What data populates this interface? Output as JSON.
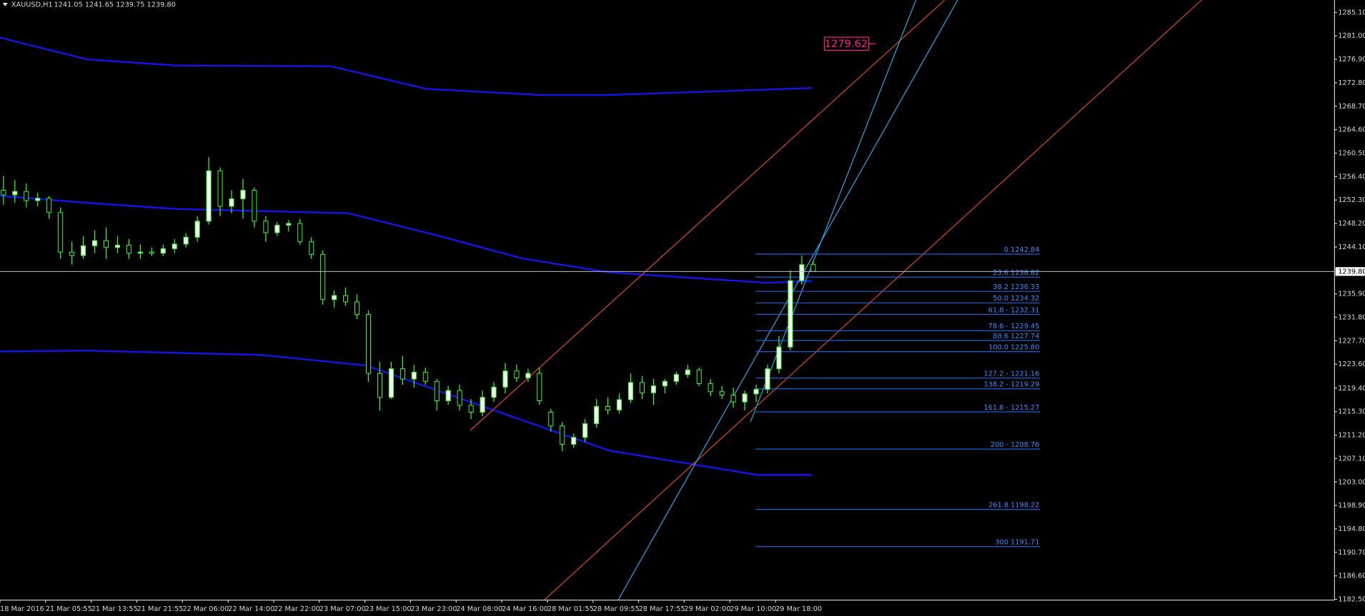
{
  "header": {
    "symbol": "XAUUSD,H1",
    "quote": "1241.05 1241.65 1239.75 1239.80"
  },
  "chart_data": {
    "type": "candlestick",
    "categories": [
      "18 Mar 2016",
      null,
      null,
      null,
      "21 Mar 05:55",
      null,
      null,
      null,
      "21 Mar 13:55",
      null,
      null,
      null,
      "21 Mar 21:55",
      null,
      null,
      null,
      "22 Mar 06:00",
      null,
      null,
      null,
      "22 Mar 14:00",
      null,
      null,
      null,
      "22 Mar 22:00",
      null,
      null,
      null,
      "23 Mar 07:00",
      null,
      null,
      null,
      "23 Mar 15:00",
      null,
      null,
      null,
      "23 Mar 23:00",
      null,
      null,
      null,
      "24 Mar 08:00",
      null,
      null,
      null,
      "24 Mar 16:00",
      null,
      null,
      null,
      "28 Mar 01:55",
      null,
      null,
      null,
      "28 Mar 09:55",
      null,
      null,
      null,
      "28 Mar 17:55",
      null,
      null,
      null,
      "29 Mar 02:00",
      null,
      null,
      null,
      "29 Mar 10:00",
      null,
      null,
      null,
      "29 Mar 18:00",
      null,
      null,
      null
    ],
    "open": [
      1254.0,
      1253.2,
      1253.8,
      1252.2,
      1252.6,
      1250.1,
      1243.2,
      1242.6,
      1244.3,
      1245.2,
      1244.0,
      1244.4,
      1243.0,
      1243.2,
      1243.0,
      1243.8,
      1244.6,
      1245.8,
      1248.6,
      1257.4,
      1251.2,
      1252.5,
      1254.0,
      1248.6,
      1246.6,
      1247.9,
      1248.2,
      1245.0,
      1242.8,
      1234.9,
      1235.6,
      1234.5,
      1232.3,
      1222.0,
      1217.8,
      1222.8,
      1221.0,
      1222.2,
      1220.6,
      1217.2,
      1219.0,
      1216.4,
      1215.2,
      1217.8,
      1219.6,
      1222.4,
      1221.2,
      1222.0,
      1215.2,
      1212.8,
      1209.6,
      1210.8,
      1213.2,
      1216.2,
      1215.6,
      1217.4,
      1220.4,
      1218.6,
      1219.8,
      1220.6,
      1221.8,
      1222.6,
      1220.2,
      1218.8,
      1218.2,
      1217.0,
      1218.4,
      1219.2,
      1222.8,
      1226.6,
      1238.2,
      1241.05
    ],
    "high": [
      1256.5,
      1255.8,
      1255.2,
      1253.6,
      1253.0,
      1251.0,
      1245.0,
      1246.0,
      1247.0,
      1247.5,
      1246.0,
      1245.5,
      1244.5,
      1244.0,
      1244.5,
      1245.5,
      1246.5,
      1249.5,
      1259.8,
      1258.0,
      1254.0,
      1256.0,
      1254.5,
      1249.5,
      1248.5,
      1248.8,
      1249.0,
      1245.8,
      1243.5,
      1236.5,
      1237.0,
      1235.8,
      1233.0,
      1224.0,
      1224.0,
      1225.0,
      1223.5,
      1223.0,
      1221.0,
      1219.8,
      1220.0,
      1217.5,
      1219.0,
      1220.5,
      1223.8,
      1223.5,
      1222.8,
      1223.0,
      1215.8,
      1213.5,
      1211.5,
      1214.0,
      1217.5,
      1217.8,
      1218.5,
      1222.0,
      1221.5,
      1221.0,
      1221.0,
      1222.3,
      1223.5,
      1223.0,
      1221.0,
      1219.8,
      1219.5,
      1219.0,
      1220.0,
      1223.5,
      1228.5,
      1240.0,
      1242.6,
      1241.65
    ],
    "low": [
      1251.5,
      1251.8,
      1251.0,
      1251.2,
      1249.0,
      1242.0,
      1241.0,
      1242.0,
      1243.0,
      1242.0,
      1243.0,
      1242.0,
      1242.0,
      1242.5,
      1242.5,
      1243.0,
      1244.0,
      1245.0,
      1248.0,
      1249.5,
      1250.0,
      1249.0,
      1247.5,
      1245.0,
      1246.0,
      1246.8,
      1244.5,
      1242.0,
      1234.0,
      1233.5,
      1233.8,
      1231.5,
      1220.5,
      1215.5,
      1217.5,
      1220.0,
      1219.5,
      1220.0,
      1215.5,
      1216.5,
      1215.5,
      1214.0,
      1214.5,
      1217.0,
      1218.5,
      1220.5,
      1220.5,
      1216.5,
      1211.8,
      1208.4,
      1209.0,
      1210.0,
      1212.5,
      1214.8,
      1215.0,
      1216.8,
      1217.5,
      1216.5,
      1218.5,
      1220.0,
      1221.2,
      1219.8,
      1218.0,
      1217.5,
      1216.0,
      1215.5,
      1217.0,
      1218.5,
      1222.0,
      1226.0,
      1237.5,
      1239.75
    ],
    "close": [
      1253.2,
      1253.8,
      1252.2,
      1252.6,
      1250.1,
      1243.2,
      1242.6,
      1244.3,
      1245.2,
      1244.0,
      1244.4,
      1243.0,
      1243.2,
      1243.0,
      1243.8,
      1244.6,
      1245.8,
      1248.6,
      1257.4,
      1251.2,
      1252.5,
      1254.0,
      1248.6,
      1246.6,
      1247.9,
      1248.2,
      1245.0,
      1242.8,
      1234.9,
      1235.6,
      1234.5,
      1232.3,
      1222.0,
      1217.8,
      1222.8,
      1221.0,
      1222.2,
      1220.6,
      1217.2,
      1219.0,
      1216.4,
      1215.2,
      1217.8,
      1219.6,
      1222.4,
      1221.2,
      1222.0,
      1217.2,
      1212.8,
      1209.6,
      1210.8,
      1213.2,
      1216.2,
      1215.6,
      1217.4,
      1220.4,
      1218.6,
      1219.8,
      1220.6,
      1221.8,
      1222.6,
      1220.2,
      1218.8,
      1218.2,
      1217.0,
      1218.4,
      1219.2,
      1222.8,
      1226.6,
      1238.2,
      1241.0,
      1239.8
    ],
    "up_color": "#f2fff0",
    "down_color": "#000000",
    "wick_color": "#33ff22",
    "ylim": [
      1182.35,
      1287.23
    ],
    "yticks": [
      {
        "value": 1285.1,
        "label": "1285.10"
      },
      {
        "value": 1281,
        "label": "1281.00"
      },
      {
        "value": 1276.9,
        "label": "1276.90"
      },
      {
        "value": 1272.8,
        "label": "1272.80"
      },
      {
        "value": 1268.7,
        "label": "1268.70"
      },
      {
        "value": 1264.6,
        "label": "1264.60"
      },
      {
        "value": 1260.5,
        "label": "1260.50"
      },
      {
        "value": 1256.4,
        "label": "1256.40"
      },
      {
        "value": 1252.3,
        "label": "1252.30"
      },
      {
        "value": 1248.2,
        "label": "1248.20"
      },
      {
        "value": 1244.1,
        "label": "1244.10"
      },
      {
        "value": 1235.9,
        "label": "1235.90"
      },
      {
        "value": 1231.8,
        "label": "1231.80"
      },
      {
        "value": 1227.7,
        "label": "1227.70"
      },
      {
        "value": 1223.6,
        "label": "1223.60"
      },
      {
        "value": 1219.4,
        "label": "1219.40"
      },
      {
        "value": 1215.3,
        "label": "1215.30"
      },
      {
        "value": 1211.2,
        "label": "1211.20"
      },
      {
        "value": 1207.1,
        "label": "1207.10"
      },
      {
        "value": 1203,
        "label": "1203.00"
      },
      {
        "value": 1198.9,
        "label": "1198.90"
      },
      {
        "value": 1194.8,
        "label": "1194.80"
      },
      {
        "value": 1190.7,
        "label": "1190.70"
      },
      {
        "value": 1186.6,
        "label": "1186.60"
      },
      {
        "value": 1182.5,
        "label": "1182.50"
      }
    ],
    "last_price": {
      "value": 1239.8,
      "label": "1239.80"
    },
    "price_label": 1279.62,
    "fib_levels": [
      {
        "value": 1242.84,
        "label": "0 1242.84"
      },
      {
        "value": 1238.82,
        "label": "23.6 1238.82"
      },
      {
        "value": 1236.33,
        "label": "38.2 1236.33"
      },
      {
        "value": 1234.32,
        "label": "50.0 1234.32"
      },
      {
        "value": 1232.31,
        "label": "61.8 - 1232.31"
      },
      {
        "value": 1229.45,
        "label": "78.6 - 1229.45"
      },
      {
        "value": 1227.74,
        "label": "88.6 1227.74"
      },
      {
        "value": 1225.8,
        "label": "100.0 1225.80"
      },
      {
        "value": 1221.16,
        "label": "127.2 - 1221.16"
      },
      {
        "value": 1219.29,
        "label": "138.2 - 1219.29"
      },
      {
        "value": 1215.27,
        "label": "161.8 - 1215.27"
      },
      {
        "value": 1208.76,
        "label": "200 - 1208.76"
      },
      {
        "value": 1198.22,
        "label": "261.8 1198.22"
      },
      {
        "value": 1191.71,
        "label": "300 1191.71"
      }
    ],
    "fib_color": "#1e62d8"
  }
}
